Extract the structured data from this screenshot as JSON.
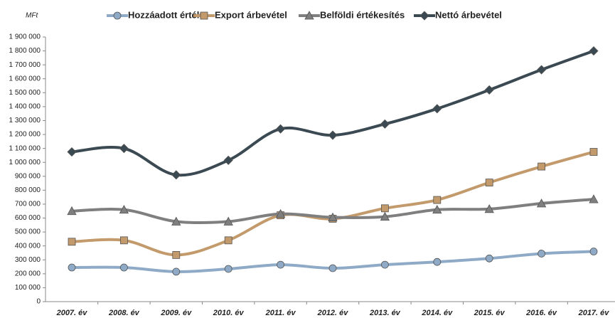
{
  "chart_data": {
    "type": "line",
    "y_axis_label": "MFt",
    "categories": [
      "2007. év",
      "2008. év",
      "2009. év",
      "2010. év",
      "2011. év",
      "2012. év",
      "2013. év",
      "2014. év",
      "2015. év",
      "2016. év",
      "2017. év"
    ],
    "series": [
      {
        "name": "Hozzáadott érték",
        "color": "#8eaac6",
        "marker": "circle",
        "values": [
          245000,
          245000,
          215000,
          235000,
          265000,
          240000,
          265000,
          285000,
          310000,
          345000,
          360000
        ]
      },
      {
        "name": "Export árbevétel",
        "color": "#c39a6b",
        "marker": "square",
        "values": [
          430000,
          440000,
          335000,
          440000,
          620000,
          595000,
          670000,
          730000,
          855000,
          970000,
          1075000
        ]
      },
      {
        "name": "Belföldi értékesítés",
        "color": "#7f7f7f",
        "marker": "triangle",
        "values": [
          650000,
          660000,
          575000,
          575000,
          630000,
          605000,
          610000,
          660000,
          665000,
          705000,
          735000
        ]
      },
      {
        "name": "Nettó árbevétel",
        "color": "#3b4a52",
        "marker": "diamond",
        "values": [
          1075000,
          1100000,
          910000,
          1015000,
          1240000,
          1195000,
          1275000,
          1385000,
          1520000,
          1665000,
          1800000
        ]
      }
    ],
    "ylim": [
      0,
      1900000
    ],
    "yticks": [
      0,
      {
        "value": 100000,
        "label": "100 000"
      },
      {
        "value": 200000,
        "label": "200 000"
      },
      {
        "value": 300000,
        "label": "300 000"
      },
      {
        "value": 400000,
        "label": "400 000"
      },
      {
        "value": 500000,
        "label": "500 000"
      },
      {
        "value": 600000,
        "label": "600 000"
      },
      {
        "value": 700000,
        "label": "700 000"
      },
      {
        "value": 800000,
        "label": "800 000"
      },
      {
        "value": 900000,
        "label": "900 000"
      },
      {
        "value": 1000000,
        "label": "1 000 000"
      },
      {
        "value": 1100000,
        "label": "1 100 000"
      },
      {
        "value": 1200000,
        "label": "1 200 000"
      },
      {
        "value": 1300000,
        "label": "1 300 000"
      },
      {
        "value": 1400000,
        "label": "1 400 000"
      },
      {
        "value": 1500000,
        "label": "1 500 000"
      },
      {
        "value": 1600000,
        "label": "1 600 000"
      },
      {
        "value": 1700000,
        "label": "1 700 000"
      },
      {
        "value": 1800000,
        "label": "1 800 000"
      },
      {
        "value": 1900000,
        "label": "1 900 000"
      }
    ],
    "grid": false,
    "legend": "top"
  }
}
